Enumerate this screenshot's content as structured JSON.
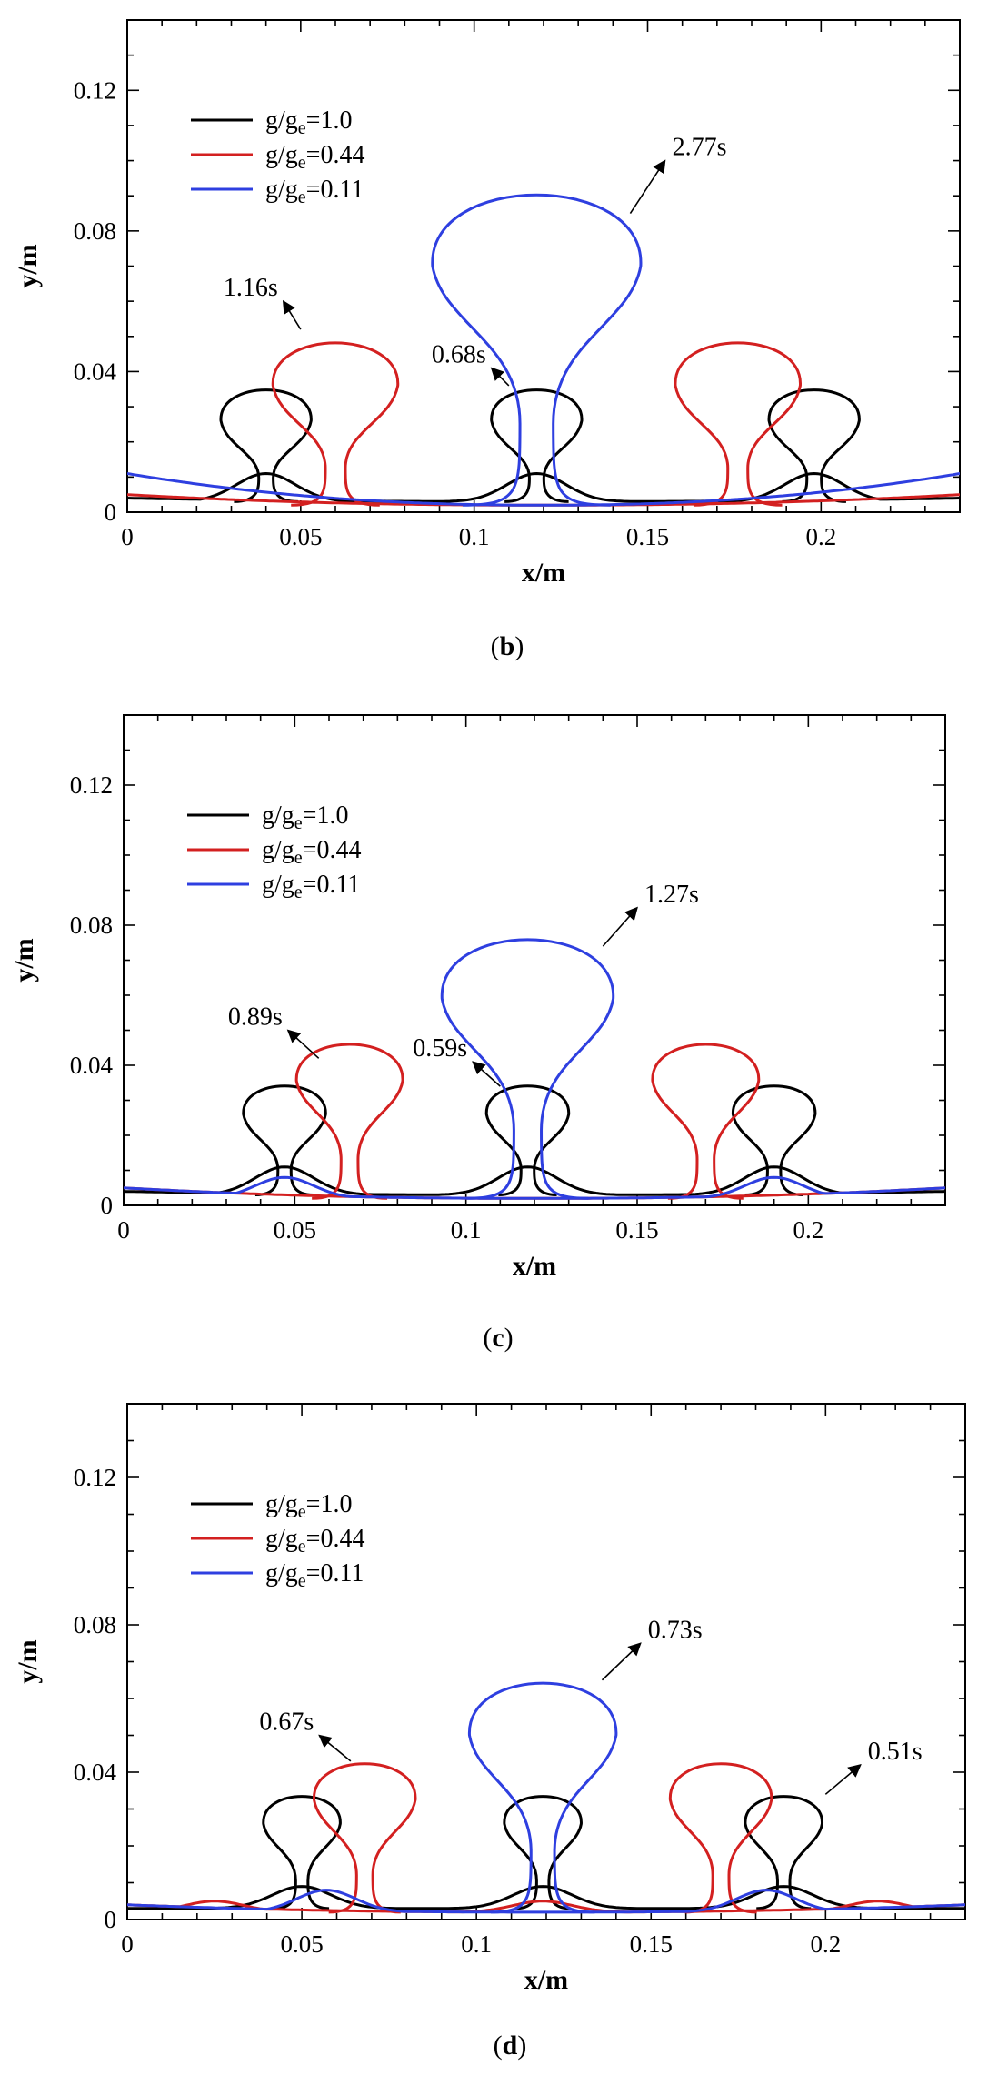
{
  "chart_data": [
    {
      "panel": "b",
      "type": "line",
      "xlabel": "x/m",
      "ylabel": "y/m",
      "xlim": [
        0,
        0.24
      ],
      "ylim": [
        0,
        0.14
      ],
      "xticks": [
        0,
        0.05,
        0.1,
        0.15,
        0.2
      ],
      "xtick_labels": [
        "0",
        "0.05",
        "0.1",
        "0.15",
        "0.2"
      ],
      "yticks": [
        0,
        0.04,
        0.08,
        0.12
      ],
      "ytick_labels": [
        "0",
        "0.04",
        "0.08",
        "0.12"
      ],
      "grid": false,
      "legend": "top-left",
      "caption_letter": "b",
      "series": [
        {
          "name": "g/ge=1.0",
          "legend_main": "g/g",
          "legend_sub": "e",
          "legend_value": "=1.0",
          "color": "#000000",
          "time_label": "0.68s",
          "bubbles": [
            {
              "x": 0.04,
              "neck_y": 0.012,
              "radius": 0.013,
              "top": 0.039
            },
            {
              "x": 0.118,
              "neck_y": 0.012,
              "radius": 0.013,
              "top": 0.039
            },
            {
              "x": 0.198,
              "neck_y": 0.012,
              "radius": 0.013,
              "top": 0.039
            }
          ],
          "film": {
            "base": 0.003,
            "edge": 0.004,
            "peaks_x": [
              0.04,
              0.118,
              0.198
            ],
            "peak_y": 0.011
          }
        },
        {
          "name": "g/ge=0.44",
          "legend_main": "g/g",
          "legend_sub": "e",
          "legend_value": "=0.44",
          "color": "#d32020",
          "time_label": "1.16s",
          "bubbles": [
            {
              "x": 0.06,
              "neck_y": 0.018,
              "radius": 0.018,
              "top": 0.054
            },
            {
              "x": 0.176,
              "neck_y": 0.018,
              "radius": 0.018,
              "top": 0.054
            }
          ],
          "film": {
            "base": 0.002,
            "edge": 0.005,
            "peaks_x": [],
            "peak_y": 0.003
          }
        },
        {
          "name": "g/ge=0.11",
          "legend_main": "g/g",
          "legend_sub": "e",
          "legend_value": "=0.11",
          "color": "#2e3fe0",
          "time_label": "2.77s",
          "bubbles": [
            {
              "x": 0.118,
              "neck_y": 0.04,
              "radius": 0.03,
              "top": 0.1
            }
          ],
          "film": {
            "base": 0.002,
            "edge": 0.011,
            "peaks_x": [],
            "peak_y": 0.002
          }
        }
      ],
      "annotations": [
        {
          "text": "2.77s",
          "series": "g/ge=0.11",
          "from": [
            0.145,
            0.085
          ],
          "to": [
            0.155,
            0.1
          ]
        },
        {
          "text": "1.16s",
          "series": "g/ge=0.44",
          "from": [
            0.05,
            0.052
          ],
          "to": [
            0.045,
            0.06
          ]
        },
        {
          "text": "0.68s",
          "series": "g/ge=1.0",
          "from": [
            0.11,
            0.036
          ],
          "to": [
            0.105,
            0.041
          ]
        }
      ]
    },
    {
      "panel": "c",
      "type": "line",
      "xlabel": "x/m",
      "ylabel": "y/m",
      "xlim": [
        0,
        0.24
      ],
      "ylim": [
        0,
        0.14
      ],
      "xticks": [
        0,
        0.05,
        0.1,
        0.15,
        0.2
      ],
      "xtick_labels": [
        "0",
        "0.05",
        "0.1",
        "0.15",
        "0.2"
      ],
      "yticks": [
        0,
        0.04,
        0.08,
        0.12
      ],
      "ytick_labels": [
        "0",
        "0.04",
        "0.08",
        "0.12"
      ],
      "grid": false,
      "legend": "top-left",
      "caption_letter": "c",
      "series": [
        {
          "name": "g/ge=1.0",
          "legend_main": "g/g",
          "legend_sub": "e",
          "legend_value": "=1.0",
          "color": "#000000",
          "time_label": "0.59s",
          "bubbles": [
            {
              "x": 0.047,
              "neck_y": 0.014,
              "radius": 0.012,
              "top": 0.038
            },
            {
              "x": 0.118,
              "neck_y": 0.014,
              "radius": 0.012,
              "top": 0.038
            },
            {
              "x": 0.19,
              "neck_y": 0.014,
              "radius": 0.012,
              "top": 0.038
            }
          ],
          "film": {
            "base": 0.003,
            "edge": 0.004,
            "peaks_x": [
              0.047,
              0.118,
              0.19
            ],
            "peak_y": 0.011
          }
        },
        {
          "name": "g/ge=0.44",
          "legend_main": "g/g",
          "legend_sub": "e",
          "legend_value": "=0.44",
          "color": "#d32020",
          "time_label": "0.89s",
          "bubbles": [
            {
              "x": 0.066,
              "neck_y": 0.018,
              "radius": 0.0155,
              "top": 0.051
            },
            {
              "x": 0.17,
              "neck_y": 0.018,
              "radius": 0.0155,
              "top": 0.051
            }
          ],
          "film": {
            "base": 0.002,
            "edge": 0.005,
            "peaks_x": [],
            "peak_y": 0.004
          }
        },
        {
          "name": "g/ge=0.11",
          "legend_main": "g/g",
          "legend_sub": "e",
          "legend_value": "=0.11",
          "color": "#2e3fe0",
          "time_label": "1.27s",
          "bubbles": [
            {
              "x": 0.118,
              "neck_y": 0.033,
              "radius": 0.025,
              "top": 0.084
            }
          ],
          "film": {
            "base": 0.002,
            "edge": 0.005,
            "peaks_x": [
              0.047,
              0.19
            ],
            "peak_y": 0.008
          }
        }
      ],
      "annotations": [
        {
          "text": "1.27s",
          "series": "g/ge=0.11",
          "from": [
            0.14,
            0.074
          ],
          "to": [
            0.15,
            0.085
          ]
        },
        {
          "text": "0.89s",
          "series": "g/ge=0.44",
          "from": [
            0.057,
            0.042
          ],
          "to": [
            0.048,
            0.05
          ]
        },
        {
          "text": "0.59s",
          "series": "g/ge=1.0",
          "from": [
            0.11,
            0.034
          ],
          "to": [
            0.102,
            0.041
          ]
        }
      ]
    },
    {
      "panel": "d",
      "type": "line",
      "xlabel": "x/m",
      "ylabel": "y/m",
      "xlim": [
        0,
        0.24
      ],
      "ylim": [
        0,
        0.14
      ],
      "xticks": [
        0,
        0.05,
        0.1,
        0.15,
        0.2
      ],
      "xtick_labels": [
        "0",
        "0.05",
        "0.1",
        "0.15",
        "0.2"
      ],
      "yticks": [
        0,
        0.04,
        0.08,
        0.12
      ],
      "ytick_labels": [
        "0",
        "0.04",
        "0.08",
        "0.12"
      ],
      "grid": false,
      "legend": "top-left",
      "caption_letter": "d",
      "series": [
        {
          "name": "g/ge=1.0",
          "legend_main": "g/g",
          "legend_sub": "e",
          "legend_value": "=1.0",
          "color": "#000000",
          "time_label": "0.51s",
          "bubbles": [
            {
              "x": 0.05,
              "neck_y": 0.015,
              "radius": 0.011,
              "top": 0.037
            },
            {
              "x": 0.119,
              "neck_y": 0.015,
              "radius": 0.011,
              "top": 0.037
            },
            {
              "x": 0.188,
              "neck_y": 0.015,
              "radius": 0.011,
              "top": 0.037
            }
          ],
          "film": {
            "base": 0.003,
            "edge": 0.003,
            "peaks_x": [
              0.05,
              0.119,
              0.188
            ],
            "peak_y": 0.009
          }
        },
        {
          "name": "g/ge=0.44",
          "legend_main": "g/g",
          "legend_sub": "e",
          "legend_value": "=0.44",
          "color": "#d32020",
          "time_label": "0.67s",
          "bubbles": [
            {
              "x": 0.068,
              "neck_y": 0.017,
              "radius": 0.0145,
              "top": 0.047
            },
            {
              "x": 0.17,
              "neck_y": 0.017,
              "radius": 0.0145,
              "top": 0.047
            }
          ],
          "film": {
            "base": 0.002,
            "edge": 0.004,
            "peaks_x": [
              0.025,
              0.119,
              0.215
            ],
            "peak_y": 0.005
          }
        },
        {
          "name": "g/ge=0.11",
          "legend_main": "g/g",
          "legend_sub": "e",
          "legend_value": "=0.11",
          "color": "#2e3fe0",
          "time_label": "0.73s",
          "bubbles": [
            {
              "x": 0.119,
              "neck_y": 0.03,
              "radius": 0.021,
              "top": 0.071
            }
          ],
          "film": {
            "base": 0.002,
            "edge": 0.004,
            "peaks_x": [
              0.057,
              0.183
            ],
            "peak_y": 0.008
          }
        }
      ],
      "annotations": [
        {
          "text": "0.73s",
          "series": "g/ge=0.11",
          "from": [
            0.136,
            0.065
          ],
          "to": [
            0.147,
            0.075
          ]
        },
        {
          "text": "0.67s",
          "series": "g/ge=0.44",
          "from": [
            0.064,
            0.043
          ],
          "to": [
            0.055,
            0.05
          ]
        },
        {
          "text": "0.51s",
          "series": "g/ge=1.0",
          "from": [
            0.2,
            0.034
          ],
          "to": [
            0.21,
            0.042
          ]
        }
      ]
    }
  ]
}
